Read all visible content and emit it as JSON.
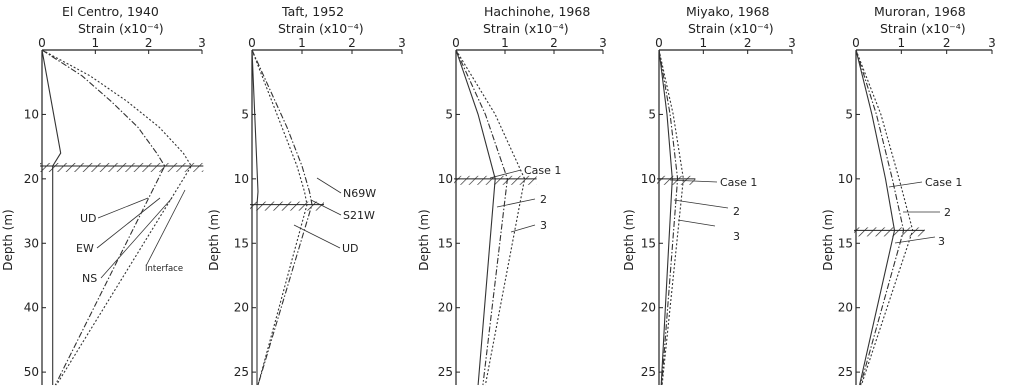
{
  "chart_data": [
    {
      "type": "line",
      "title": "El Centro, 1940",
      "xlabel": "Strain (x10⁻⁴)",
      "ylabel": "Depth (m)",
      "xlim": [
        0,
        3
      ],
      "ylim": [
        0,
        52
      ],
      "x_ticks": [
        "0",
        "1",
        "2",
        "3"
      ],
      "y_ticks": [
        "10",
        "20",
        "30",
        "40",
        "50"
      ],
      "interface_depth": 18,
      "series": [
        {
          "name": "UD",
          "depth": [
            0,
            16,
            18,
            52
          ],
          "strain": [
            0,
            0.35,
            0.2,
            0.2
          ]
        },
        {
          "name": "EW",
          "depth": [
            0,
            4,
            8,
            12,
            16,
            18,
            52
          ],
          "strain": [
            0,
            0.75,
            1.3,
            1.8,
            2.15,
            2.3,
            0.25
          ]
        },
        {
          "name": "NS",
          "depth": [
            0,
            4,
            8,
            12,
            16,
            18,
            52
          ],
          "strain": [
            0,
            0.9,
            1.6,
            2.2,
            2.65,
            2.8,
            0.27
          ]
        }
      ],
      "annotations": [
        "UD",
        "EW",
        "NS",
        "Interface"
      ]
    },
    {
      "type": "line",
      "title": "Taft, 1952",
      "xlabel": "Strain (x10⁻⁴)",
      "ylabel": "Depth (m)",
      "xlim": [
        0,
        3
      ],
      "ylim": [
        0,
        26
      ],
      "x_ticks": [
        "0",
        "1",
        "2",
        "3"
      ],
      "y_ticks": [
        "5",
        "10",
        "15",
        "20",
        "25"
      ],
      "interface_depth": 12,
      "series": [
        {
          "name": "UD",
          "depth": [
            0,
            11,
            12,
            26
          ],
          "strain": [
            0,
            0.12,
            0.1,
            0.1
          ]
        },
        {
          "name": "N69W",
          "depth": [
            0,
            3,
            6,
            9,
            11,
            12,
            26
          ],
          "strain": [
            0,
            0.35,
            0.7,
            1.0,
            1.15,
            1.2,
            0.12
          ]
        },
        {
          "name": "S21W",
          "depth": [
            0,
            3,
            6,
            9,
            11,
            12,
            26
          ],
          "strain": [
            0,
            0.3,
            0.6,
            0.9,
            1.05,
            1.1,
            0.12
          ]
        }
      ],
      "annotations": [
        "N69W",
        "S21W",
        "UD"
      ]
    },
    {
      "type": "line",
      "title": "Hachinohe, 1968",
      "xlabel": "Strain (x10⁻⁴)",
      "ylabel": "Depth (m)",
      "xlim": [
        0,
        3
      ],
      "ylim": [
        0,
        26
      ],
      "x_ticks": [
        "0",
        "1",
        "2",
        "3"
      ],
      "y_ticks": [
        "5",
        "10",
        "15",
        "20",
        "25"
      ],
      "interface_depth": 10,
      "series": [
        {
          "name": "Case 1",
          "depth": [
            0,
            5,
            10,
            26
          ],
          "strain": [
            0,
            0.45,
            0.8,
            0.45
          ]
        },
        {
          "name": "2",
          "depth": [
            0,
            5,
            10,
            26
          ],
          "strain": [
            0,
            0.6,
            1.05,
            0.55
          ]
        },
        {
          "name": "3",
          "depth": [
            0,
            5,
            10,
            26
          ],
          "strain": [
            0,
            0.8,
            1.4,
            0.6
          ]
        }
      ],
      "annotations": [
        "Case 1",
        "2",
        "3"
      ]
    },
    {
      "type": "line",
      "title": "Miyako, 1968",
      "xlabel": "Strain (x10⁻⁴)",
      "ylabel": "Depth (m)",
      "xlim": [
        0,
        3
      ],
      "ylim": [
        0,
        26
      ],
      "x_ticks": [
        "0",
        "1",
        "2",
        "3"
      ],
      "y_ticks": [
        "5",
        "10",
        "15",
        "20",
        "25"
      ],
      "interface_depth": 10,
      "series": [
        {
          "name": "Case 1",
          "depth": [
            0,
            5,
            10,
            26
          ],
          "strain": [
            0,
            0.18,
            0.3,
            0.05
          ]
        },
        {
          "name": "2",
          "depth": [
            0,
            5,
            10,
            26
          ],
          "strain": [
            0,
            0.25,
            0.42,
            0.06
          ]
        },
        {
          "name": "3",
          "depth": [
            0,
            5,
            10,
            26
          ],
          "strain": [
            0,
            0.32,
            0.55,
            0.07
          ]
        }
      ],
      "annotations": [
        "Case 1",
        "2",
        "3"
      ]
    },
    {
      "type": "line",
      "title": "Muroran, 1968",
      "xlabel": "Strain (x10⁻⁴)",
      "ylabel": "Depth (m)",
      "xlim": [
        0,
        3
      ],
      "ylim": [
        0,
        26
      ],
      "x_ticks": [
        "0",
        "1",
        "2",
        "3"
      ],
      "y_ticks": [
        "5",
        "10",
        "15",
        "20",
        "25"
      ],
      "interface_depth": 14,
      "series": [
        {
          "name": "Case 1",
          "depth": [
            0,
            5,
            10,
            14,
            26
          ],
          "strain": [
            0,
            0.35,
            0.65,
            0.85,
            0.08
          ]
        },
        {
          "name": "2",
          "depth": [
            0,
            5,
            10,
            14,
            26
          ],
          "strain": [
            0,
            0.45,
            0.8,
            1.05,
            0.1
          ]
        },
        {
          "name": "3",
          "depth": [
            0,
            5,
            10,
            14,
            26
          ],
          "strain": [
            0,
            0.55,
            0.95,
            1.25,
            0.12
          ]
        }
      ],
      "annotations": [
        "Case 1",
        "2",
        "3"
      ]
    }
  ]
}
